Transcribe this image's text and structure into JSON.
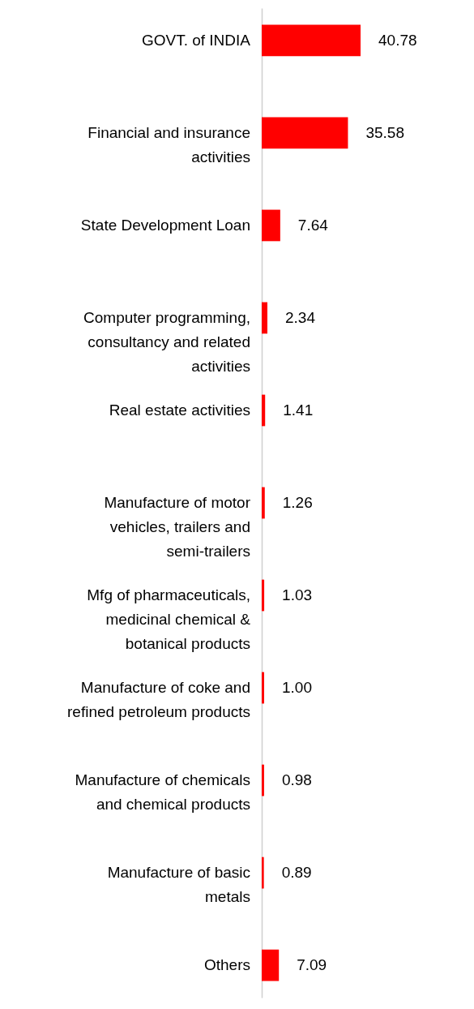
{
  "chart_data": {
    "type": "bar",
    "orientation": "horizontal",
    "categories": [
      "GOVT. of INDIA",
      "Financial and insurance activities",
      "State Development Loan",
      "Computer programming, consultancy and related activities",
      "Real estate activities",
      "Manufacture of motor vehicles, trailers and semi-trailers",
      "Mfg of pharmaceuticals, medicinal chemical & botanical products",
      "Manufacture of coke and refined petroleum products",
      "Manufacture of chemicals and chemical products",
      "Manufacture of basic metals",
      "Others"
    ],
    "values": [
      40.78,
      35.58,
      7.64,
      2.34,
      1.41,
      1.26,
      1.03,
      1.0,
      0.98,
      0.89,
      7.09
    ],
    "value_labels": [
      "40.78",
      "35.58",
      "7.64",
      "2.34",
      "1.41",
      "1.26",
      "1.03",
      "1.00",
      "0.98",
      "0.89",
      "7.09"
    ],
    "color": "#ff0000"
  }
}
